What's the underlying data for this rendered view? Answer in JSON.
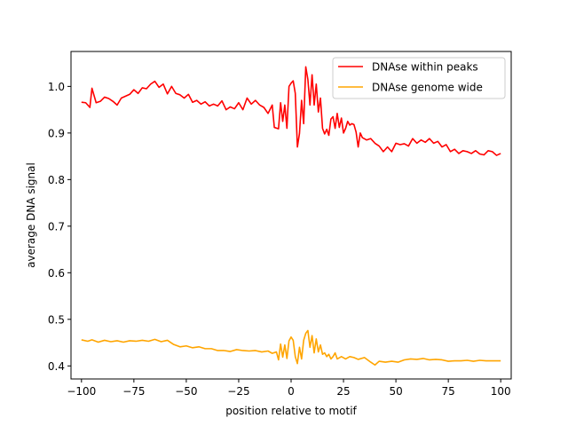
{
  "chart_data": {
    "type": "line",
    "title": "",
    "xlabel": "position relative to motif",
    "ylabel": "average DNA signal",
    "xlim": [
      -105,
      105
    ],
    "ylim": [
      0.372,
      1.075
    ],
    "grid": false,
    "legend_position": "top-right",
    "x_ticks": [
      -100,
      -75,
      -50,
      -25,
      0,
      25,
      50,
      75,
      100
    ],
    "x_tick_labels": [
      "−100",
      "−75",
      "−50",
      "−25",
      "0",
      "25",
      "50",
      "75",
      "100"
    ],
    "y_ticks": [
      0.4,
      0.5,
      0.6,
      0.7,
      0.8,
      0.9,
      1.0
    ],
    "y_tick_labels": [
      "0.4",
      "0.5",
      "0.6",
      "0.7",
      "0.8",
      "0.9",
      "1.0"
    ],
    "series": [
      {
        "name": "DNAse within peaks",
        "color": "#ff0000",
        "points": [
          [
            -100,
            0.966
          ],
          [
            -98,
            0.965
          ],
          [
            -96,
            0.955
          ],
          [
            -95,
            0.996
          ],
          [
            -93,
            0.965
          ],
          [
            -91,
            0.968
          ],
          [
            -89,
            0.977
          ],
          [
            -87,
            0.974
          ],
          [
            -85,
            0.968
          ],
          [
            -83,
            0.96
          ],
          [
            -81,
            0.975
          ],
          [
            -79,
            0.979
          ],
          [
            -77,
            0.983
          ],
          [
            -75,
            0.993
          ],
          [
            -73,
            0.985
          ],
          [
            -71,
            0.997
          ],
          [
            -69,
            0.995
          ],
          [
            -67,
            1.005
          ],
          [
            -65,
            1.011
          ],
          [
            -63,
            0.998
          ],
          [
            -61,
            1.005
          ],
          [
            -59,
            0.984
          ],
          [
            -57,
            1.0
          ],
          [
            -55,
            0.985
          ],
          [
            -53,
            0.982
          ],
          [
            -51,
            0.975
          ],
          [
            -49,
            0.983
          ],
          [
            -47,
            0.966
          ],
          [
            -45,
            0.97
          ],
          [
            -43,
            0.962
          ],
          [
            -41,
            0.967
          ],
          [
            -39,
            0.958
          ],
          [
            -37,
            0.962
          ],
          [
            -35,
            0.958
          ],
          [
            -33,
            0.969
          ],
          [
            -31,
            0.95
          ],
          [
            -29,
            0.956
          ],
          [
            -27,
            0.952
          ],
          [
            -25,
            0.965
          ],
          [
            -23,
            0.95
          ],
          [
            -21,
            0.975
          ],
          [
            -19,
            0.962
          ],
          [
            -17,
            0.97
          ],
          [
            -15,
            0.96
          ],
          [
            -13,
            0.955
          ],
          [
            -11,
            0.942
          ],
          [
            -9,
            0.96
          ],
          [
            -8,
            0.912
          ],
          [
            -6,
            0.909
          ],
          [
            -5,
            0.965
          ],
          [
            -4,
            0.925
          ],
          [
            -3,
            0.96
          ],
          [
            -2,
            0.91
          ],
          [
            -1,
            1.0
          ],
          [
            0,
            1.007
          ],
          [
            1,
            1.012
          ],
          [
            2,
            0.985
          ],
          [
            3,
            0.87
          ],
          [
            4,
            0.899
          ],
          [
            5,
            0.97
          ],
          [
            6,
            0.92
          ],
          [
            7,
            1.042
          ],
          [
            8,
            1.015
          ],
          [
            9,
            0.96
          ],
          [
            10,
            1.025
          ],
          [
            11,
            0.96
          ],
          [
            12,
            1.005
          ],
          [
            13,
            0.945
          ],
          [
            14,
            0.975
          ],
          [
            15,
            0.91
          ],
          [
            16,
            0.898
          ],
          [
            17,
            0.908
          ],
          [
            18,
            0.895
          ],
          [
            19,
            0.93
          ],
          [
            20,
            0.935
          ],
          [
            21,
            0.91
          ],
          [
            22,
            0.942
          ],
          [
            23,
            0.912
          ],
          [
            24,
            0.932
          ],
          [
            25,
            0.9
          ],
          [
            26,
            0.91
          ],
          [
            27,
            0.925
          ],
          [
            28,
            0.917
          ],
          [
            29,
            0.92
          ],
          [
            30,
            0.918
          ],
          [
            31,
            0.902
          ],
          [
            32,
            0.87
          ],
          [
            33,
            0.9
          ],
          [
            34,
            0.89
          ],
          [
            36,
            0.885
          ],
          [
            38,
            0.888
          ],
          [
            40,
            0.878
          ],
          [
            42,
            0.872
          ],
          [
            44,
            0.86
          ],
          [
            46,
            0.87
          ],
          [
            48,
            0.86
          ],
          [
            50,
            0.878
          ],
          [
            52,
            0.875
          ],
          [
            54,
            0.877
          ],
          [
            56,
            0.872
          ],
          [
            58,
            0.888
          ],
          [
            60,
            0.878
          ],
          [
            62,
            0.885
          ],
          [
            64,
            0.88
          ],
          [
            66,
            0.888
          ],
          [
            68,
            0.878
          ],
          [
            70,
            0.882
          ],
          [
            72,
            0.87
          ],
          [
            74,
            0.875
          ],
          [
            76,
            0.86
          ],
          [
            78,
            0.865
          ],
          [
            80,
            0.856
          ],
          [
            82,
            0.862
          ],
          [
            84,
            0.86
          ],
          [
            86,
            0.856
          ],
          [
            88,
            0.862
          ],
          [
            90,
            0.855
          ],
          [
            92,
            0.853
          ],
          [
            94,
            0.862
          ],
          [
            96,
            0.86
          ],
          [
            98,
            0.852
          ],
          [
            100,
            0.856
          ]
        ]
      },
      {
        "name": "DNAse genome wide",
        "color": "#ffa500",
        "points": [
          [
            -100,
            0.456
          ],
          [
            -97,
            0.453
          ],
          [
            -95,
            0.456
          ],
          [
            -92,
            0.451
          ],
          [
            -89,
            0.455
          ],
          [
            -86,
            0.452
          ],
          [
            -83,
            0.454
          ],
          [
            -80,
            0.451
          ],
          [
            -77,
            0.454
          ],
          [
            -74,
            0.453
          ],
          [
            -71,
            0.455
          ],
          [
            -68,
            0.453
          ],
          [
            -65,
            0.457
          ],
          [
            -62,
            0.452
          ],
          [
            -59,
            0.455
          ],
          [
            -56,
            0.446
          ],
          [
            -53,
            0.441
          ],
          [
            -50,
            0.443
          ],
          [
            -47,
            0.439
          ],
          [
            -44,
            0.441
          ],
          [
            -41,
            0.437
          ],
          [
            -38,
            0.437
          ],
          [
            -35,
            0.433
          ],
          [
            -32,
            0.433
          ],
          [
            -29,
            0.431
          ],
          [
            -26,
            0.435
          ],
          [
            -23,
            0.433
          ],
          [
            -20,
            0.432
          ],
          [
            -17,
            0.433
          ],
          [
            -14,
            0.43
          ],
          [
            -11,
            0.432
          ],
          [
            -9,
            0.427
          ],
          [
            -7,
            0.43
          ],
          [
            -6,
            0.413
          ],
          [
            -5,
            0.447
          ],
          [
            -4,
            0.419
          ],
          [
            -3,
            0.445
          ],
          [
            -2,
            0.416
          ],
          [
            -1,
            0.454
          ],
          [
            0,
            0.462
          ],
          [
            1,
            0.455
          ],
          [
            2,
            0.42
          ],
          [
            3,
            0.405
          ],
          [
            4,
            0.44
          ],
          [
            5,
            0.415
          ],
          [
            6,
            0.455
          ],
          [
            7,
            0.47
          ],
          [
            8,
            0.476
          ],
          [
            9,
            0.44
          ],
          [
            10,
            0.465
          ],
          [
            11,
            0.428
          ],
          [
            12,
            0.458
          ],
          [
            13,
            0.43
          ],
          [
            14,
            0.445
          ],
          [
            15,
            0.425
          ],
          [
            16,
            0.428
          ],
          [
            17,
            0.42
          ],
          [
            18,
            0.425
          ],
          [
            19,
            0.415
          ],
          [
            20,
            0.42
          ],
          [
            21,
            0.428
          ],
          [
            22,
            0.415
          ],
          [
            24,
            0.42
          ],
          [
            26,
            0.415
          ],
          [
            28,
            0.42
          ],
          [
            30,
            0.418
          ],
          [
            32,
            0.414
          ],
          [
            35,
            0.418
          ],
          [
            38,
            0.408
          ],
          [
            40,
            0.402
          ],
          [
            42,
            0.41
          ],
          [
            45,
            0.408
          ],
          [
            48,
            0.41
          ],
          [
            51,
            0.408
          ],
          [
            54,
            0.413
          ],
          [
            57,
            0.415
          ],
          [
            60,
            0.414
          ],
          [
            63,
            0.416
          ],
          [
            66,
            0.413
          ],
          [
            69,
            0.414
          ],
          [
            72,
            0.413
          ],
          [
            75,
            0.41
          ],
          [
            78,
            0.411
          ],
          [
            81,
            0.411
          ],
          [
            84,
            0.412
          ],
          [
            87,
            0.41
          ],
          [
            90,
            0.412
          ],
          [
            93,
            0.411
          ],
          [
            96,
            0.411
          ],
          [
            100,
            0.411
          ]
        ]
      }
    ]
  }
}
